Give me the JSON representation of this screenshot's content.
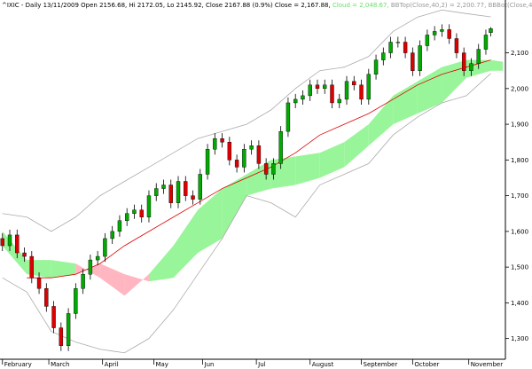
{
  "chart_data": {
    "type": "candlestick",
    "header": [
      {
        "text": "^IXIC - Daily 13/11/2009 Open 2156.68, Hi 2172.05, Lo 2145.92, Close 2167.88 (0.9%) Close = 2,167.88, ",
        "color": "#000000"
      },
      {
        "text": "Cloud = 2,048.67, ",
        "color": "#66dd66"
      },
      {
        "text": "BBTop(Close,40,2) = 2,200.77, ",
        "color": "#999999"
      },
      {
        "text": "BBBot(Close,40,2) = 2,042.38, ",
        "color": "#999999"
      },
      {
        "text": "EMA(Close,50) = 2,0",
        "color": "#dd0000"
      }
    ],
    "xlim": [
      -1,
      206
    ],
    "ylim": [
      1242,
      2248
    ],
    "xticks": [
      {
        "value": 0,
        "label": "February"
      },
      {
        "value": 19,
        "label": "March"
      },
      {
        "value": 41,
        "label": "April"
      },
      {
        "value": 62,
        "label": "May"
      },
      {
        "value": 82,
        "label": "Jun"
      },
      {
        "value": 104,
        "label": "Jul"
      },
      {
        "value": 126,
        "label": "August"
      },
      {
        "value": 147,
        "label": "September"
      },
      {
        "value": 168,
        "label": "October"
      },
      {
        "value": 191,
        "label": "November"
      }
    ],
    "yticks": [
      {
        "value": 1300,
        "label": "1,300"
      },
      {
        "value": 1400,
        "label": "1,400"
      },
      {
        "value": 1500,
        "label": "1,500"
      },
      {
        "value": 1600,
        "label": "1,600"
      },
      {
        "value": 1700,
        "label": "1,700"
      },
      {
        "value": 1800,
        "label": "1,800"
      },
      {
        "value": 1900,
        "label": "1,900"
      },
      {
        "value": 2000,
        "label": "2,000"
      },
      {
        "value": 2100,
        "label": "2,100"
      }
    ],
    "up_color": "#00aa00",
    "down_color": "#dd0000",
    "candles": {
      "x": [
        0,
        3,
        6,
        9,
        12,
        15,
        18,
        21,
        24,
        27,
        30,
        33,
        36,
        39,
        42,
        45,
        48,
        51,
        54,
        57,
        60,
        63,
        66,
        69,
        72,
        75,
        78,
        81,
        84,
        87,
        90,
        93,
        96,
        99,
        102,
        105,
        108,
        111,
        114,
        117,
        120,
        123,
        126,
        129,
        132,
        135,
        138,
        141,
        144,
        147,
        150,
        153,
        156,
        159,
        162,
        165,
        168,
        171,
        174,
        177,
        180,
        183,
        186,
        189,
        192,
        195,
        198,
        200
      ],
      "open": [
        1580,
        1560,
        1590,
        1540,
        1530,
        1470,
        1440,
        1390,
        1330,
        1280,
        1370,
        1440,
        1480,
        1520,
        1530,
        1580,
        1600,
        1630,
        1650,
        1660,
        1640,
        1700,
        1720,
        1730,
        1680,
        1740,
        1700,
        1690,
        1760,
        1830,
        1860,
        1850,
        1800,
        1780,
        1830,
        1840,
        1790,
        1760,
        1790,
        1880,
        1960,
        1970,
        1980,
        2010,
        2000,
        2010,
        1960,
        1970,
        2020,
        2010,
        1970,
        2040,
        2080,
        2100,
        2130,
        2130,
        2100,
        2050,
        2120,
        2150,
        2160,
        2165,
        2140,
        2100,
        2050,
        2070,
        2110,
        2156.68
      ],
      "high": [
        1595,
        1605,
        1605,
        1555,
        1545,
        1485,
        1455,
        1405,
        1345,
        1385,
        1455,
        1495,
        1535,
        1545,
        1595,
        1615,
        1645,
        1665,
        1675,
        1675,
        1715,
        1735,
        1745,
        1745,
        1755,
        1755,
        1715,
        1775,
        1845,
        1875,
        1875,
        1865,
        1815,
        1845,
        1855,
        1855,
        1805,
        1805,
        1895,
        1975,
        1985,
        1995,
        2025,
        2025,
        2025,
        2025,
        1985,
        2035,
        2035,
        2025,
        2055,
        2095,
        2115,
        2145,
        2145,
        2145,
        2115,
        2135,
        2165,
        2175,
        2180,
        2180,
        2155,
        2115,
        2085,
        2125,
        2165,
        2172.05
      ],
      "low": [
        1545,
        1545,
        1525,
        1515,
        1455,
        1425,
        1375,
        1315,
        1265,
        1265,
        1355,
        1425,
        1465,
        1505,
        1515,
        1565,
        1585,
        1615,
        1635,
        1625,
        1625,
        1685,
        1705,
        1665,
        1665,
        1685,
        1675,
        1675,
        1745,
        1815,
        1835,
        1785,
        1765,
        1765,
        1815,
        1775,
        1745,
        1745,
        1775,
        1865,
        1945,
        1955,
        1965,
        1985,
        1985,
        1945,
        1945,
        1955,
        1995,
        1955,
        1955,
        2025,
        2065,
        2085,
        2115,
        2085,
        2035,
        2035,
        2105,
        2135,
        2145,
        2125,
        2085,
        2035,
        2035,
        2055,
        2095,
        2145.92
      ],
      "close": [
        1560,
        1590,
        1540,
        1530,
        1470,
        1440,
        1390,
        1330,
        1280,
        1370,
        1440,
        1480,
        1520,
        1530,
        1580,
        1600,
        1630,
        1650,
        1660,
        1640,
        1700,
        1720,
        1730,
        1680,
        1740,
        1700,
        1690,
        1760,
        1830,
        1860,
        1850,
        1800,
        1780,
        1830,
        1840,
        1790,
        1760,
        1790,
        1880,
        1960,
        1970,
        1980,
        2010,
        2000,
        2010,
        1960,
        1970,
        2020,
        2010,
        1970,
        2040,
        2080,
        2100,
        2130,
        2130,
        2100,
        2050,
        2120,
        2150,
        2160,
        2165,
        2140,
        2100,
        2050,
        2070,
        2110,
        2150,
        2167.88
      ]
    },
    "overlay_x": [
      0,
      10,
      20,
      30,
      40,
      50,
      60,
      70,
      80,
      90,
      100,
      110,
      120,
      130,
      140,
      150,
      160,
      170,
      180,
      190,
      200,
      205
    ],
    "cloud": {
      "up_color": "#99f599",
      "down_color": "#ffb6c1",
      "span_a": [
        1600,
        1520,
        1520,
        1510,
        1470,
        1420,
        1480,
        1560,
        1660,
        1720,
        1760,
        1800,
        1810,
        1820,
        1850,
        1900,
        1980,
        2020,
        2060,
        2080,
        2080,
        2075
      ],
      "span_b": [
        1560,
        1480,
        1470,
        1480,
        1510,
        1480,
        1460,
        1470,
        1540,
        1580,
        1700,
        1720,
        1730,
        1750,
        1780,
        1840,
        1900,
        1930,
        1960,
        2030,
        2050,
        2050
      ]
    },
    "lines": [
      {
        "color": "#aaaaaa",
        "values": [
          1650,
          1640,
          1600,
          1640,
          1700,
          1740,
          1780,
          1820,
          1860,
          1880,
          1900,
          1940,
          2000,
          2050,
          2060,
          2090,
          2160,
          2200,
          2220,
          2210,
          2200.77,
          null
        ]
      },
      {
        "color": "#aaaaaa",
        "values": [
          1470,
          1430,
          1320,
          1290,
          1270,
          1260,
          1300,
          1380,
          1480,
          1580,
          1700,
          1680,
          1640,
          1730,
          1760,
          1790,
          1870,
          1920,
          1960,
          1980,
          2042.38,
          null
        ]
      },
      {
        "color": "#dd0000",
        "values": [
          null,
          1470,
          1470,
          1480,
          1510,
          1560,
          1600,
          1640,
          1680,
          1720,
          1750,
          1780,
          1820,
          1870,
          1900,
          1930,
          1970,
          2010,
          2040,
          2060,
          2080,
          null
        ]
      }
    ]
  }
}
